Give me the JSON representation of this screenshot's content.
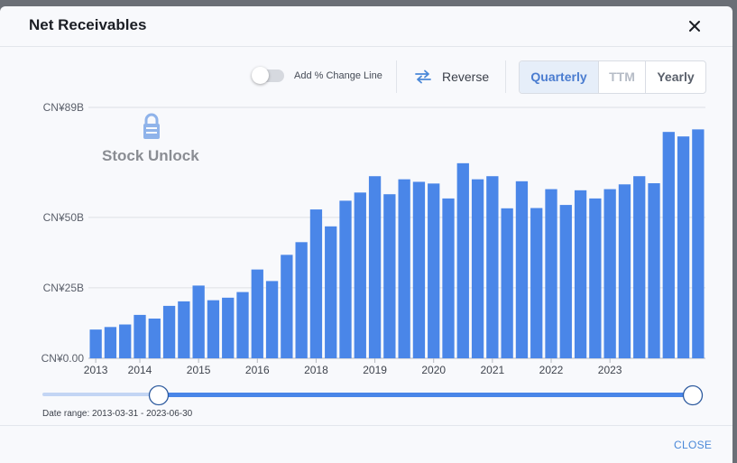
{
  "dialog": {
    "title": "Net Receivables",
    "close_label": "CLOSE"
  },
  "controls": {
    "toggle_label": "Add % Change Line",
    "toggle_on": false,
    "reverse_label": "Reverse",
    "periods": [
      "Quarterly",
      "TTM",
      "Yearly"
    ],
    "active_period": "Quarterly"
  },
  "watermark": "Stock Unlock",
  "slider": {
    "range_label": "Date range: 2013-03-31 - 2023-06-30"
  },
  "colors": {
    "bar": "#4a86e8",
    "accent": "#4a88d8",
    "watermark": "#8a8d93"
  },
  "chart_data": {
    "type": "bar",
    "title": "",
    "xlabel": "",
    "ylabel": "",
    "ylim": [
      0,
      89
    ],
    "y_ticks": [
      {
        "value": 0,
        "label": "CN¥0.00"
      },
      {
        "value": 25,
        "label": "CN¥25B"
      },
      {
        "value": 50,
        "label": "CN¥50B"
      },
      {
        "value": 89,
        "label": "CN¥89B"
      }
    ],
    "x_ticks": [
      {
        "index": 0,
        "label": "2013"
      },
      {
        "index": 3,
        "label": "2014"
      },
      {
        "index": 7,
        "label": "2015"
      },
      {
        "index": 11,
        "label": "2016"
      },
      {
        "index": 15,
        "label": "2018"
      },
      {
        "index": 19,
        "label": "2019"
      },
      {
        "index": 23,
        "label": "2020"
      },
      {
        "index": 27,
        "label": "2021"
      },
      {
        "index": 31,
        "label": "2022"
      },
      {
        "index": 35,
        "label": "2023"
      }
    ],
    "grid": true,
    "values": [
      10.2,
      11.1,
      12.0,
      15.4,
      14.1,
      18.6,
      20.2,
      25.8,
      20.6,
      21.5,
      23.5,
      31.5,
      27.4,
      36.7,
      41.2,
      52.8,
      46.8,
      55.9,
      58.8,
      64.6,
      58.2,
      63.5,
      62.6,
      62.0,
      56.7,
      69.2,
      63.5,
      64.6,
      53.2,
      62.8,
      53.3,
      60.0,
      54.4,
      59.6,
      56.7,
      60.0,
      61.7,
      64.6,
      62.1,
      80.3,
      78.7,
      81.2
    ]
  }
}
